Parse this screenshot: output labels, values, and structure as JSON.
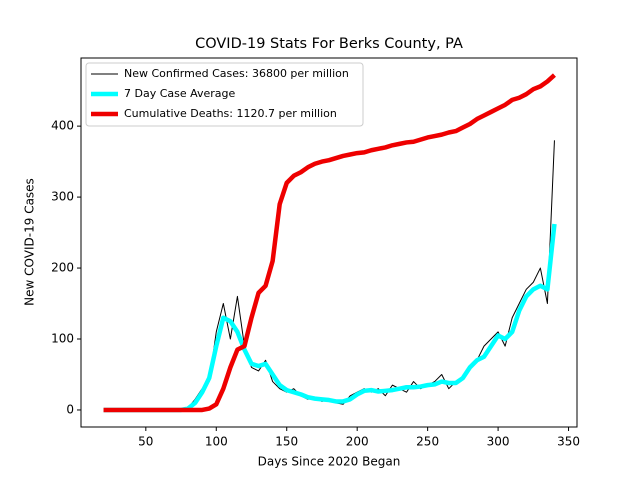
{
  "chart_data": {
    "type": "line",
    "title": "COVID-19 Stats For Berks County, PA",
    "x_label": "Days Since 2020 Began",
    "y_label": "New COVID-19 Cases",
    "x": [
      20,
      25,
      30,
      35,
      40,
      45,
      50,
      55,
      60,
      65,
      70,
      75,
      80,
      85,
      90,
      95,
      100,
      105,
      110,
      115,
      120,
      125,
      130,
      135,
      140,
      145,
      150,
      155,
      160,
      165,
      170,
      175,
      180,
      185,
      190,
      195,
      200,
      205,
      210,
      215,
      220,
      225,
      230,
      235,
      240,
      245,
      250,
      255,
      260,
      265,
      270,
      275,
      280,
      285,
      290,
      295,
      300,
      305,
      310,
      315,
      320,
      325,
      330,
      335,
      340
    ],
    "series": [
      {
        "name": "New Confirmed Cases: 36800 per million",
        "color": "#000000",
        "values": [
          0,
          0,
          0,
          0,
          0,
          0,
          0,
          0,
          0,
          0,
          0,
          0,
          3,
          15,
          30,
          40,
          110,
          150,
          100,
          160,
          90,
          60,
          55,
          70,
          40,
          30,
          25,
          30,
          20,
          15,
          18,
          12,
          15,
          10,
          8,
          20,
          25,
          30,
          25,
          30,
          20,
          35,
          30,
          25,
          40,
          30,
          35,
          40,
          50,
          30,
          40,
          45,
          60,
          70,
          90,
          100,
          110,
          90,
          130,
          150,
          170,
          180,
          200,
          150,
          380
        ]
      },
      {
        "name": "7 Day Case Average",
        "color": "#00ffff",
        "values": [
          0,
          0,
          0,
          0,
          0,
          0,
          0,
          0,
          0,
          0,
          0,
          0,
          2,
          10,
          25,
          45,
          90,
          130,
          125,
          110,
          85,
          65,
          62,
          65,
          50,
          35,
          28,
          25,
          22,
          18,
          16,
          15,
          14,
          12,
          12,
          15,
          22,
          27,
          28,
          26,
          27,
          28,
          30,
          32,
          32,
          33,
          35,
          36,
          40,
          38,
          38,
          45,
          60,
          70,
          75,
          90,
          105,
          100,
          110,
          140,
          160,
          170,
          175,
          170,
          262
        ]
      },
      {
        "name": "Cumulative Deaths: 1120.7 per million",
        "color": "#ee0000",
        "values": [
          0,
          0,
          0,
          0,
          0,
          0,
          0,
          0,
          0,
          0,
          0,
          0,
          0,
          0,
          0,
          2,
          8,
          30,
          60,
          85,
          90,
          130,
          165,
          175,
          210,
          290,
          320,
          330,
          335,
          342,
          347,
          350,
          352,
          355,
          358,
          360,
          362,
          363,
          366,
          368,
          370,
          373,
          375,
          377,
          378,
          381,
          384,
          386,
          388,
          391,
          393,
          398,
          403,
          410,
          415,
          420,
          425,
          430,
          437,
          440,
          445,
          452,
          456,
          463,
          472
        ]
      }
    ],
    "xlim": [
      4,
      356
    ],
    "ylim": [
      -24,
      496
    ],
    "xticks": [
      50,
      100,
      150,
      200,
      250,
      300,
      350
    ],
    "yticks": [
      0,
      100,
      200,
      300,
      400
    ],
    "legend": "upper left"
  }
}
